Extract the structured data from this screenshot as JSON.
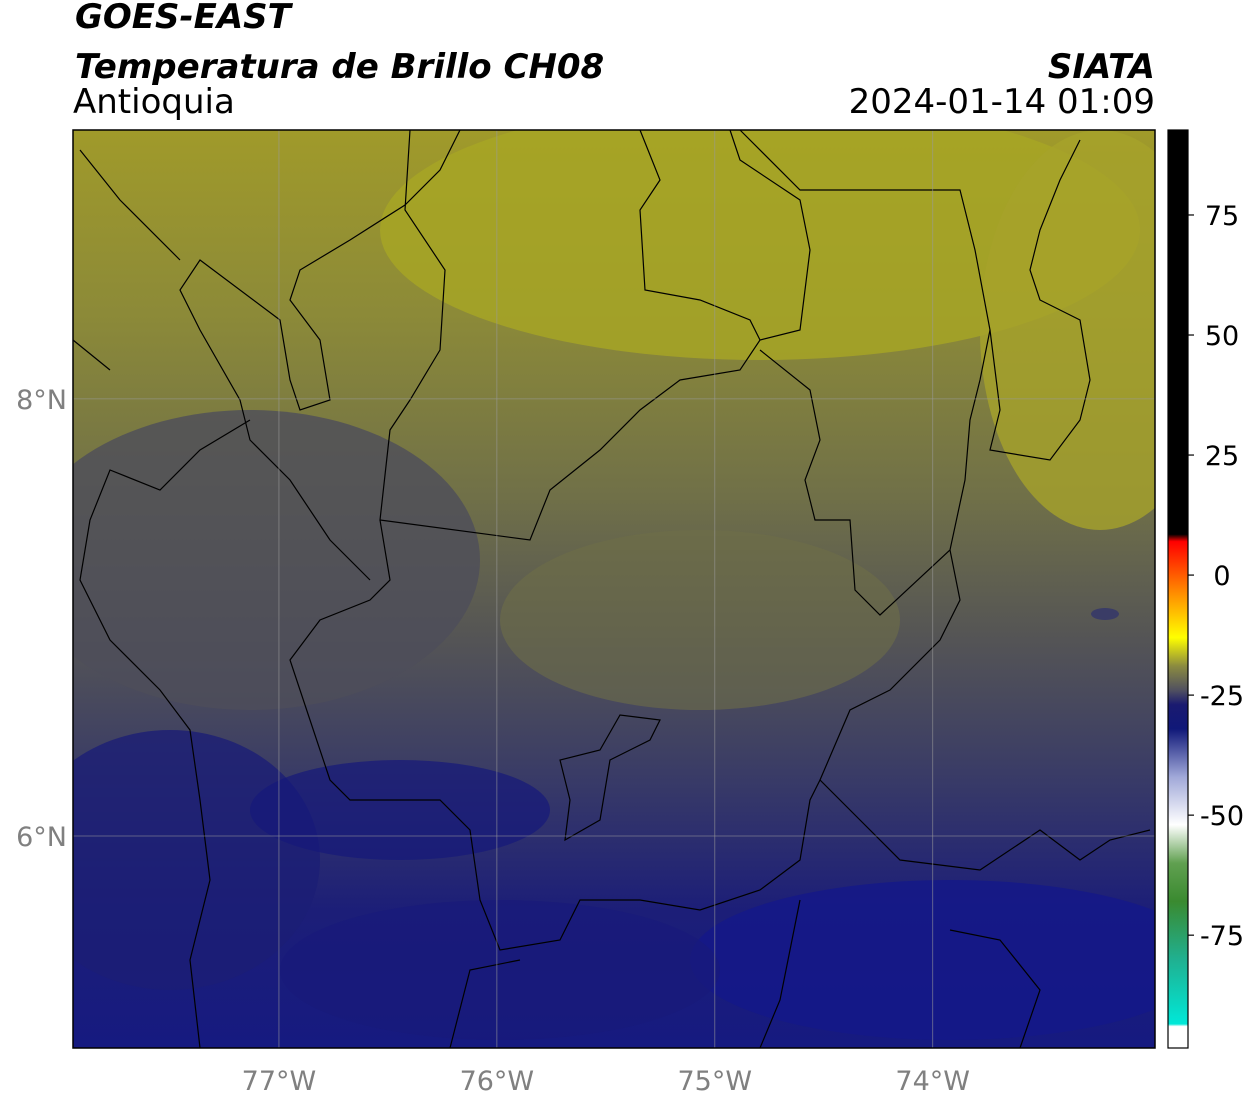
{
  "header": {
    "title": "GOES-EAST",
    "subtitle": "Temperatura de Brillo CH08",
    "region": "Antioquia",
    "source": "SIATA",
    "datetime": "2024-01-14 01:09"
  },
  "map": {
    "xlim": [
      -77.945,
      -72.98
    ],
    "ylim": [
      5.03,
      9.23
    ],
    "xticks": [
      {
        "value": -77,
        "label": "77°W"
      },
      {
        "value": -76,
        "label": "76°W"
      },
      {
        "value": -75,
        "label": "75°W"
      },
      {
        "value": -74,
        "label": "74°W"
      }
    ],
    "yticks": [
      {
        "value": 8,
        "label": "8°N"
      },
      {
        "value": 6,
        "label": "6°N"
      }
    ],
    "grid": true
  },
  "colorbar": {
    "range": [
      -98.5,
      92.7
    ],
    "ticks": [
      75,
      50,
      25,
      0,
      -25,
      -50,
      -75
    ],
    "colormap": [
      {
        "value": -98.5,
        "color": "#ffffff"
      },
      {
        "value": -94,
        "color": "#ffffff"
      },
      {
        "value": -93.5,
        "color": "#00e8d8"
      },
      {
        "value": -80,
        "color": "#20b090"
      },
      {
        "value": -68,
        "color": "#3a8a30"
      },
      {
        "value": -60,
        "color": "#60a050"
      },
      {
        "value": -52,
        "color": "#ffffff"
      },
      {
        "value": -42,
        "color": "#a0a8d8"
      },
      {
        "value": -32,
        "color": "#101878"
      },
      {
        "value": -27,
        "color": "#1a1a70"
      },
      {
        "value": -24,
        "color": "#505060"
      },
      {
        "value": -19,
        "color": "#8a8a40"
      },
      {
        "value": -13,
        "color": "#ffff00"
      },
      {
        "value": -4,
        "color": "#ff9000"
      },
      {
        "value": 7,
        "color": "#ff0000"
      },
      {
        "value": 8.5,
        "color": "#000000"
      },
      {
        "value": 92.7,
        "color": "#000000"
      }
    ]
  }
}
